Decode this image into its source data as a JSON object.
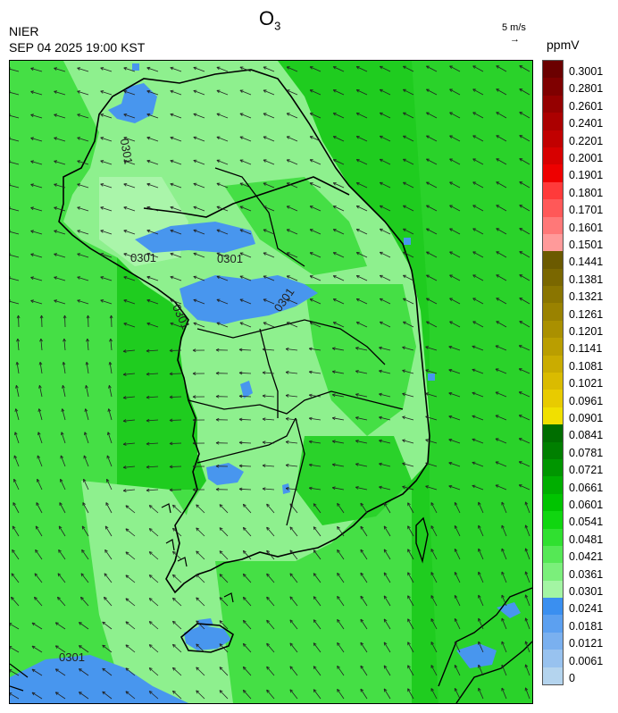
{
  "header": {
    "title_main": "O",
    "title_sub": "3",
    "agency": "NIER",
    "timestamp": "SEP 04 2025 19:00 KST",
    "wind_reference": "5 m/s",
    "wind_arrow_glyph": "→",
    "unit": "ppmV"
  },
  "map": {
    "contour_labels": [
      "0301",
      "0301",
      "0301",
      "0301",
      "0301",
      "0301"
    ],
    "colors": {
      "ocean_green": "#1fcc1f",
      "mid_green": "#45df45",
      "land_light": "#8ef08e",
      "land_pale": "#aaf5aa",
      "low_blue": "#4896ee",
      "coast": "#000000"
    }
  },
  "legend": {
    "labels": [
      "0.3001",
      "0.2801",
      "0.2601",
      "0.2401",
      "0.2201",
      "0.2001",
      "0.1901",
      "0.1801",
      "0.1701",
      "0.1601",
      "0.1501",
      "0.1441",
      "0.1381",
      "0.1321",
      "0.1261",
      "0.1201",
      "0.1141",
      "0.1081",
      "0.1021",
      "0.0961",
      "0.0901",
      "0.0841",
      "0.0781",
      "0.0721",
      "0.0661",
      "0.0601",
      "0.0541",
      "0.0481",
      "0.0421",
      "0.0361",
      "0.0301",
      "0.0241",
      "0.0181",
      "0.0121",
      "0.0061",
      "0"
    ],
    "colors": [
      "#6b0000",
      "#7f0000",
      "#950000",
      "#ab0000",
      "#c10000",
      "#d70000",
      "#ee0000",
      "#ff3a3a",
      "#ff5858",
      "#ff7878",
      "#ff9a9a",
      "#6b5a00",
      "#7a6700",
      "#8a7500",
      "#9a8200",
      "#aa9000",
      "#ba9e00",
      "#caac00",
      "#dabb00",
      "#e8cb00",
      "#f1e000",
      "#006e00",
      "#007f00",
      "#009600",
      "#00ae00",
      "#00c400",
      "#10d610",
      "#30e030",
      "#55e855",
      "#7bef7b",
      "#a3f5a3",
      "#3a8ff0",
      "#5ca0f0",
      "#7ab0ef",
      "#98c2ef",
      "#b4d4ee"
    ]
  }
}
